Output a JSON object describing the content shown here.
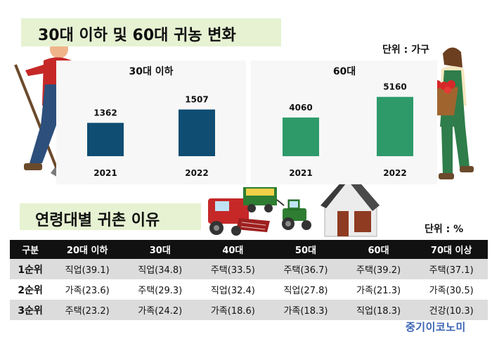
{
  "header": {
    "title": "30대 이하 및 60대 귀농 변화",
    "unit": "단위 : 가구"
  },
  "chart_data": [
    {
      "type": "bar",
      "title": "30대 이하",
      "categories": [
        "2021",
        "2022"
      ],
      "values": [
        1362,
        1507
      ],
      "color": "#0f4d73",
      "ylim": [
        1000,
        1550
      ]
    },
    {
      "type": "bar",
      "title": "60대",
      "categories": [
        "2021",
        "2022"
      ],
      "values": [
        4060,
        5160
      ],
      "color": "#2e9a6a",
      "ylim": [
        2000,
        5300
      ]
    }
  ],
  "section2": {
    "title": "연령대별 귀촌 이유",
    "unit": "단위 : %"
  },
  "table": {
    "headers": [
      "구분",
      "20대 이하",
      "30대",
      "40대",
      "50대",
      "60대",
      "70대 이상"
    ],
    "rows": [
      [
        "1순위",
        "직업(39.1)",
        "직업(34.8)",
        "주택(33.5)",
        "주택(36.7)",
        "주택(39.2)",
        "주택(37.1)"
      ],
      [
        "2순위",
        "가족(23.6)",
        "주택(29.3)",
        "직업(32.4)",
        "직업(27.8)",
        "가족(21.3)",
        "가족(30.5)"
      ],
      [
        "3순위",
        "주택(23.2)",
        "가족(24.2)",
        "가족(18.6)",
        "가족(18.3)",
        "직업(18.3)",
        "건강(10.3)"
      ]
    ]
  },
  "source": "중기이코노미",
  "illustrations": [
    "farmer-with-shovel-icon",
    "farmer-with-apple-basket-icon",
    "combine-harvester-icon",
    "tractor-with-trailer-icon",
    "farmhouse-icon"
  ]
}
